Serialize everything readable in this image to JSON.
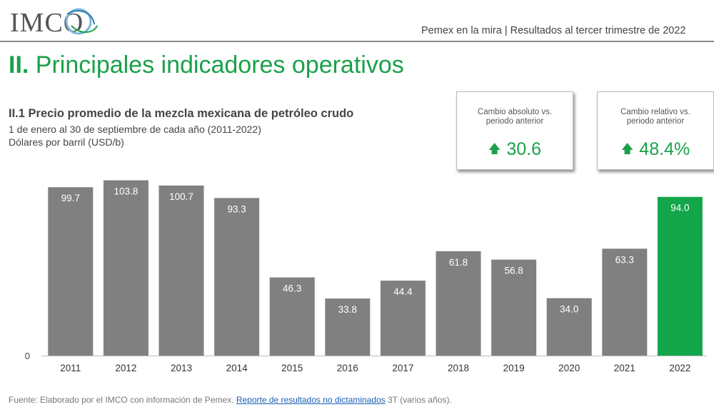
{
  "header": {
    "logo_text": "IMCO",
    "title": "Pemex en la mira | Resultados al tercer trimestre de 2022"
  },
  "section": {
    "number": "II.",
    "title": "Principales indicadores operativos"
  },
  "chart_text": {
    "title": "II.1 Precio promedio de la mezcla mexicana de petróleo crudo",
    "subtitle1": "1 de enero al 30 de septiembre de cada año (2011-2022)",
    "subtitle2": "Dólares por barril (USD/b)"
  },
  "cards": [
    {
      "label": "Cambio absoluto vs. periodo anterior",
      "value": "30.6",
      "icon": "arrow-up-icon"
    },
    {
      "label": "Cambio relativo vs. periodo anterior",
      "value": "48.4%",
      "icon": "arrow-up-icon"
    }
  ],
  "chart_data": {
    "type": "bar",
    "categories": [
      "2011",
      "2012",
      "2013",
      "2014",
      "2015",
      "2016",
      "2017",
      "2018",
      "2019",
      "2020",
      "2021",
      "2022"
    ],
    "values": [
      99.7,
      103.8,
      100.7,
      93.3,
      46.3,
      33.8,
      44.4,
      61.8,
      56.8,
      34.0,
      63.3,
      94.0
    ],
    "labels": [
      "99.7",
      "103.8",
      "100.7",
      "93.3",
      "46.3",
      "33.8",
      "44.4",
      "61.8",
      "56.8",
      "34.0",
      "63.3",
      "94.0"
    ],
    "ytick": "0",
    "ylim": [
      0,
      104
    ],
    "colors": {
      "default": "#808080",
      "highlight": "#13a64a"
    },
    "highlight_index": 11
  },
  "source": {
    "prefix": "Fuente: Elaborado por el IMCO con información de Pemex. ",
    "link": "Reporte de resultados no dictaminados",
    "suffix": " 3T (varios años)."
  }
}
